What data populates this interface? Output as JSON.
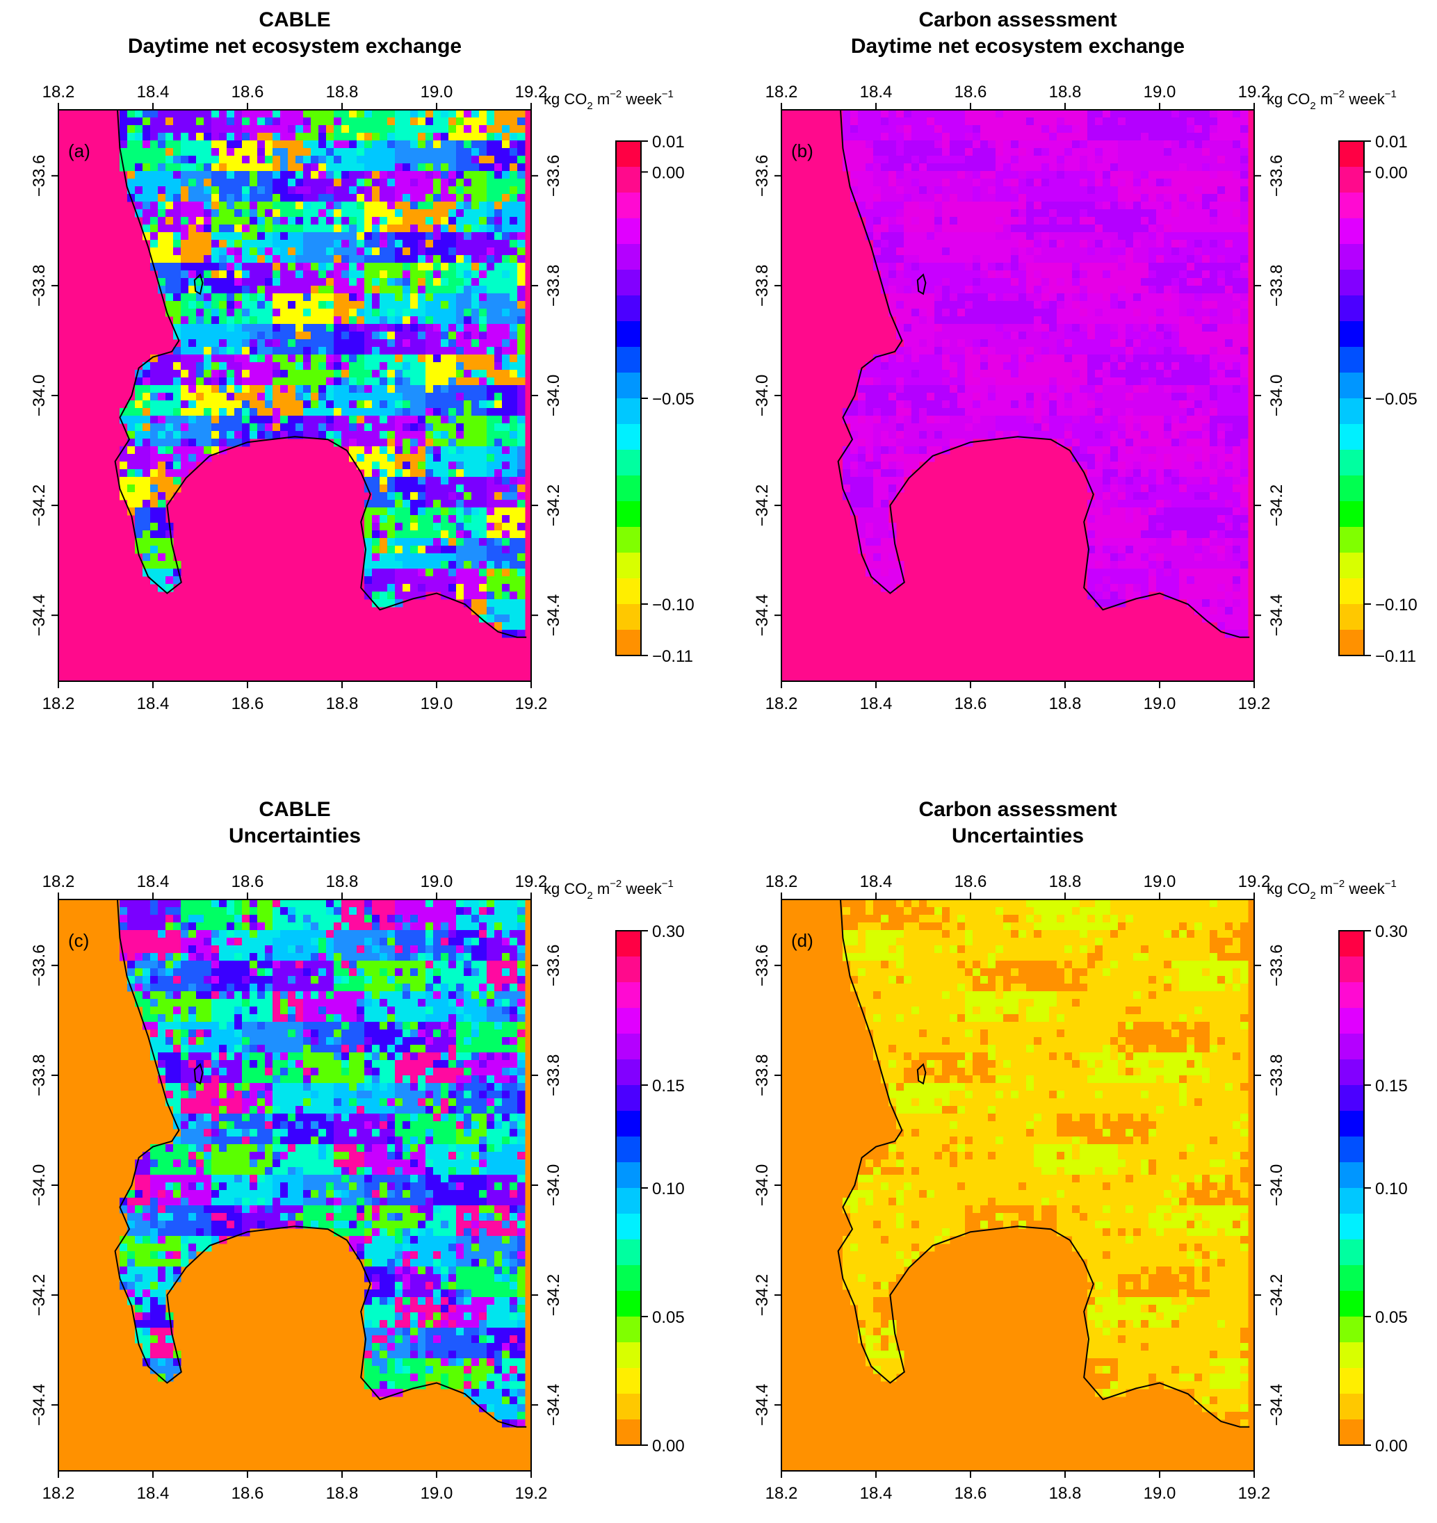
{
  "figure": {
    "panels": [
      {
        "id": "a",
        "label": "(a)",
        "title_line1": "CABLE",
        "title_line2": "Daytime net ecosystem exchange",
        "unit_text": "kg CO",
        "unit_sub": "2",
        "unit_mid": " m",
        "unit_sup1": "−2",
        "unit_end": " week",
        "unit_sup2": "−1",
        "background_color": "#ff0a8c",
        "field_palette": [
          "#00e5ee",
          "#00c8ff",
          "#1e90ff",
          "#1e5aff",
          "#3a00ff",
          "#7a00ff",
          "#a000ff",
          "#c800ff",
          "#5aff00",
          "#00ff78",
          "#00ffc8",
          "#ffff00",
          "#ffa000"
        ],
        "colorbar_ticks": [
          "0.01",
          "0.00",
          "−0.05",
          "−0.10",
          "−0.11"
        ]
      },
      {
        "id": "b",
        "label": "(b)",
        "title_line1": "Carbon assessment",
        "title_line2": "Daytime net ecosystem exchange",
        "unit_text": "kg CO",
        "unit_sub": "2",
        "unit_mid": " m",
        "unit_sup1": "−2",
        "unit_end": " week",
        "unit_sup2": "−1",
        "background_color": "#ff0a8c",
        "field_palette": [
          "#e000f0",
          "#d400f5",
          "#c800ff",
          "#e600e6",
          "#b400ff"
        ],
        "colorbar_ticks": [
          "0.01",
          "0.00",
          "−0.05",
          "−0.10",
          "−0.11"
        ]
      },
      {
        "id": "c",
        "label": "(c)",
        "title_line1": "CABLE",
        "title_line2": "Uncertainties",
        "unit_text": "kg CO",
        "unit_sub": "2",
        "unit_mid": " m",
        "unit_sup1": "−2",
        "unit_end": " week",
        "unit_sup2": "−1",
        "background_color": "#ff9100",
        "field_palette": [
          "#00e5ee",
          "#00c8ff",
          "#1e90ff",
          "#1e5aff",
          "#3a00ff",
          "#7a00ff",
          "#00ff64",
          "#5aff00",
          "#00ffc8",
          "#ff0aa0",
          "#c800ff"
        ],
        "colorbar_ticks": [
          "0.30",
          "0.15",
          "0.10",
          "0.05",
          "0.00"
        ]
      },
      {
        "id": "d",
        "label": "(d)",
        "title_line1": "Carbon assessment",
        "title_line2": "Uncertainties",
        "unit_text": "kg CO",
        "unit_sub": "2",
        "unit_mid": " m",
        "unit_sup1": "−2",
        "unit_end": " week",
        "unit_sup2": "−1",
        "background_color": "#ff9100",
        "field_palette": [
          "#ffd800",
          "#ffd800",
          "#ffd800",
          "#ff9100",
          "#ffd800",
          "#d8ff00"
        ],
        "colorbar_ticks": [
          "0.30",
          "0.15",
          "0.10",
          "0.05",
          "0.00"
        ]
      }
    ],
    "lon_ticks": [
      "18.2",
      "18.4",
      "18.6",
      "18.8",
      "19.0",
      "19.2"
    ],
    "lat_ticks": [
      "−33.6",
      "−33.8",
      "−34.0",
      "−34.2",
      "−34.4"
    ],
    "nee_colorbar_colors": [
      "#ff0044",
      "#ff0a8c",
      "#ff0ad2",
      "#e000ff",
      "#b400ff",
      "#8200ff",
      "#4b00ff",
      "#0000ff",
      "#0050ff",
      "#0096ff",
      "#00c8ff",
      "#00f0ff",
      "#00ffa0",
      "#00ff50",
      "#00ff00",
      "#80ff00",
      "#d8ff00",
      "#ffee00",
      "#ffc800",
      "#ff9100"
    ],
    "unc_colorbar_colors": [
      "#ff0044",
      "#ff0a8c",
      "#ff0ad2",
      "#e000ff",
      "#b400ff",
      "#8200ff",
      "#4b00ff",
      "#0000ff",
      "#0050ff",
      "#0096ff",
      "#00c8ff",
      "#00f0ff",
      "#00ffa0",
      "#00ff50",
      "#00ff00",
      "#80ff00",
      "#d8ff00",
      "#ffee00",
      "#ffc800",
      "#ff9100"
    ]
  }
}
